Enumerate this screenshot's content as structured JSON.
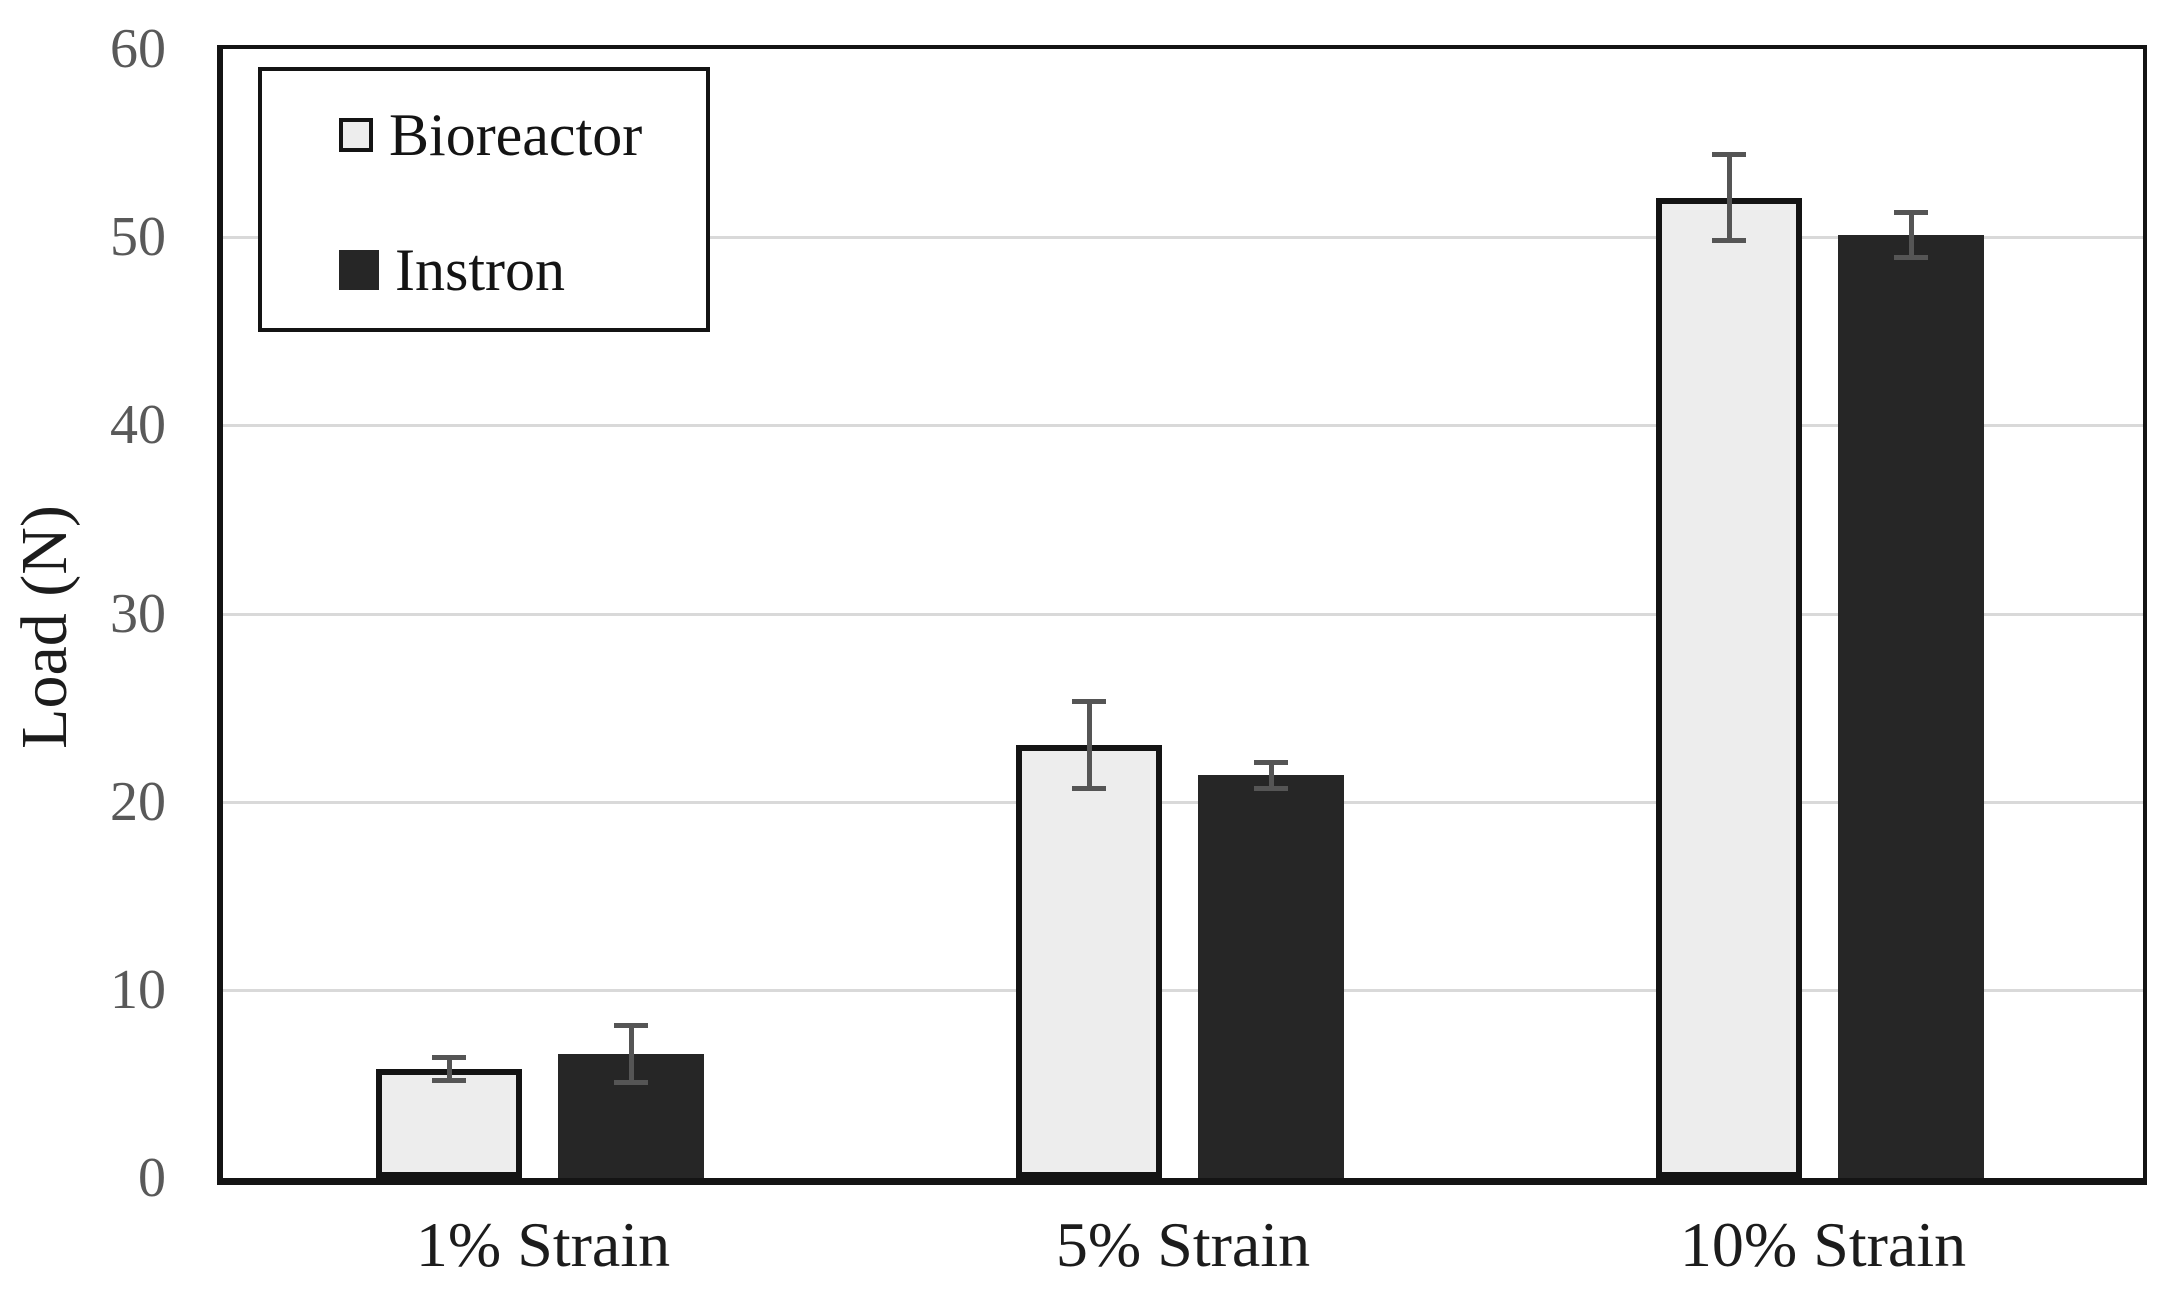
{
  "figure": {
    "background": "#ffffff"
  },
  "chart_data": {
    "type": "bar",
    "title": "",
    "xlabel": "",
    "ylabel": "Load (N)",
    "categories": [
      "1% Strain",
      "5% Strain",
      "10% Strain"
    ],
    "series": [
      {
        "name": "Bioreactor",
        "values": [
          5.8,
          23.0,
          52.1
        ],
        "errors": [
          0.6,
          2.3,
          2.3
        ],
        "fill": "#ededed",
        "stroke": "#141414"
      },
      {
        "name": "Instron",
        "values": [
          6.6,
          21.4,
          50.1
        ],
        "errors": [
          1.5,
          0.7,
          1.2
        ],
        "fill": "#262626",
        "stroke": "#262626"
      }
    ],
    "ylim": [
      0,
      60
    ],
    "y_ticks": [
      "0",
      "10",
      "20",
      "30",
      "40",
      "50",
      "60"
    ],
    "y_tick_step": 10,
    "grid": "horizontal",
    "error_bars": "both directions with caps",
    "legend_position": "top-left inside plot",
    "colors": {
      "bioreactor_fill": "#ededed",
      "bioreactor_stroke": "#141414",
      "instron_fill": "#262626",
      "error_bar": "#555555",
      "gridline": "#d9d9d9",
      "axis": "#141414",
      "tick_label": "#595959",
      "category_label": "#1c1c1c",
      "background": "#ffffff"
    }
  }
}
